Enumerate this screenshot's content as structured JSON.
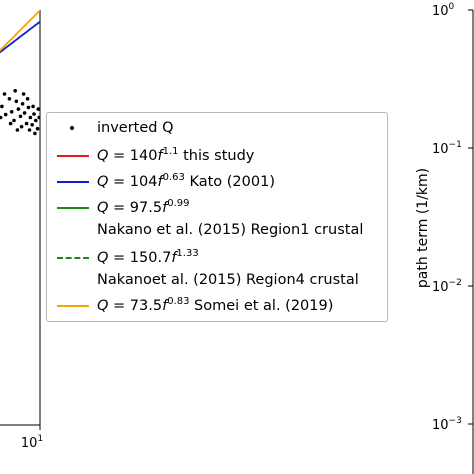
{
  "chart_data": [
    {
      "type": "scatter",
      "xscale": "log",
      "yscale": "log",
      "x_ticks": [
        {
          "mantissa": "10",
          "exponent": "1",
          "value": 10
        }
      ],
      "legend_placement": "center-right",
      "series": [
        {
          "name": "inverted Q",
          "kind": "points",
          "color": "#000000",
          "points": [
            [
              6.3,
              190
            ],
            [
              6.6,
              175
            ],
            [
              6.9,
              205
            ],
            [
              7.1,
              180
            ],
            [
              7.3,
              165
            ],
            [
              7.5,
              200
            ],
            [
              7.7,
              185
            ],
            [
              7.9,
              172
            ],
            [
              8.1,
              195
            ],
            [
              8.3,
              178
            ],
            [
              8.5,
              160
            ],
            [
              8.7,
              188
            ],
            [
              8.9,
              170
            ],
            [
              9.1,
              158
            ],
            [
              9.3,
              176
            ],
            [
              9.5,
              165
            ],
            [
              9.7,
              152
            ],
            [
              9.9,
              170
            ],
            [
              6.5,
              215
            ],
            [
              7.0,
              160
            ],
            [
              7.6,
              150
            ],
            [
              8.2,
              215
            ],
            [
              8.8,
              150
            ],
            [
              9.4,
              145
            ],
            [
              9.8,
              185
            ],
            [
              6.2,
              170
            ],
            [
              7.4,
              222
            ],
            [
              8.0,
              155
            ],
            [
              8.6,
              205
            ],
            [
              9.2,
              190
            ]
          ]
        },
        {
          "name": "Q = 140f^1.1 this study",
          "label_parts": [
            "Q",
            " = 140",
            "f",
            "1.1",
            " this study"
          ],
          "kind": "line",
          "color": "#e8191c",
          "dash": false,
          "a": 140,
          "b": 1.1
        },
        {
          "name": "Q = 104f^0.63 Kato (2001)",
          "label_parts": [
            "Q",
            " = 104",
            "f",
            "0.63",
            " Kato (2001)"
          ],
          "kind": "line",
          "color": "#0a1fd6",
          "dash": false,
          "a": 104,
          "b": 0.63
        },
        {
          "name": "Q = 97.5f^0.99 Nakano et al. (2015) Region1 crustal",
          "label_parts": [
            "Q",
            " = 97.5",
            "f",
            "0.99",
            ""
          ],
          "label_line2": "Nakano et al. (2015) Region1 crustal",
          "kind": "line",
          "color": "#1a8a1a",
          "dash": false,
          "a": 97.5,
          "b": 0.99
        },
        {
          "name": "Q = 150.7f^1.33 Nakanoet al. (2015) Region4 crustal",
          "label_parts": [
            "Q",
            " = 150.7",
            "f",
            "1.33",
            ""
          ],
          "label_line2": "Nakanoet al. (2015) Region4 crustal",
          "kind": "line",
          "color": "#1a8a1a",
          "dash": true,
          "a": 150.7,
          "b": 1.33
        },
        {
          "name": "Q = 73.5f^0.83 Somei et al. (2019)",
          "label_parts": [
            "Q",
            " = 73.5",
            "f",
            "0.83",
            " Somei et al. (2019)"
          ],
          "kind": "line",
          "color": "#f5a300",
          "dash": false,
          "a": 73.5,
          "b": 0.83
        }
      ]
    },
    {
      "type": "line",
      "yscale": "log",
      "ylabel": "path term (1/km)",
      "y_ticks": [
        {
          "mantissa": "10",
          "exponent": "0",
          "value": 1
        },
        {
          "mantissa": "10",
          "exponent": "−1",
          "value": 0.1
        },
        {
          "mantissa": "10",
          "exponent": "−2",
          "value": 0.01
        },
        {
          "mantissa": "10",
          "exponent": "−3",
          "value": 0.001
        }
      ],
      "ylim": [
        0.001,
        1
      ]
    }
  ]
}
